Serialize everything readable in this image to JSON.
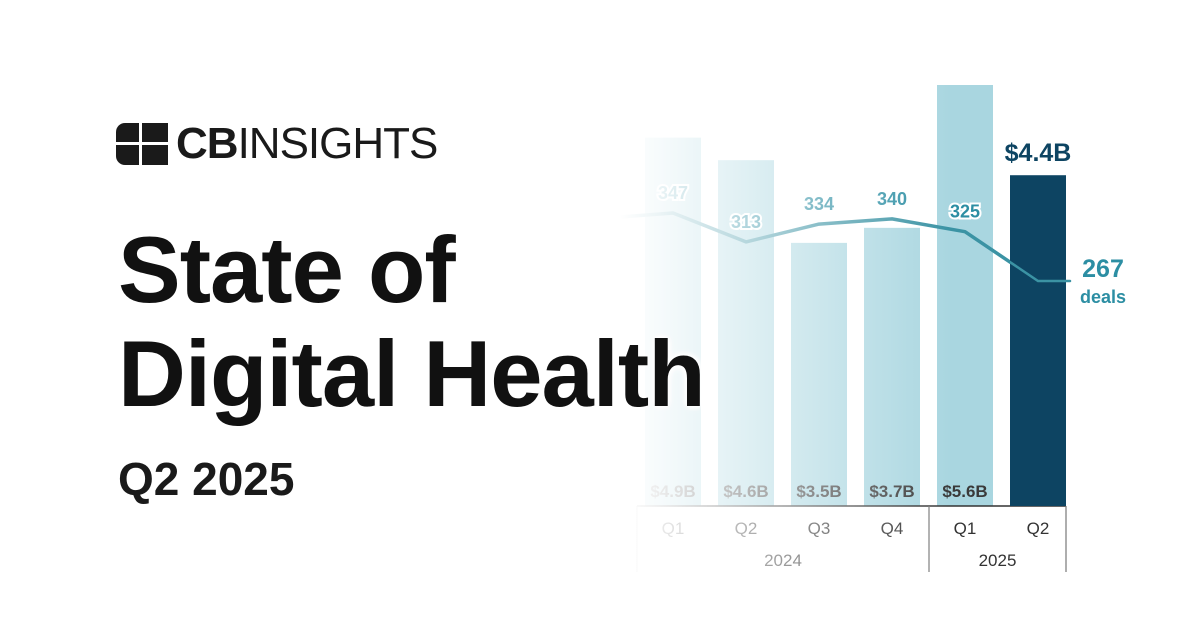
{
  "brand": {
    "logo_icon": "cb-insights-square-mark",
    "name_bold": "CB",
    "name_light": "INSIGHTS"
  },
  "title": {
    "line1": "State of",
    "line2": "Digital Health"
  },
  "subtitle": "Q2 2025",
  "colors": {
    "highlight_bar": "#0d4462",
    "bar_light": "#a9d6e0",
    "line": "#3b93a4",
    "deal_label": "#2c8ea3",
    "title_text": "#111111"
  },
  "chart_data": {
    "type": "bar",
    "categories": [
      "Q1",
      "Q2",
      "Q3",
      "Q4",
      "Q1",
      "Q2"
    ],
    "groups": [
      {
        "label": "2024",
        "categories": [
          "Q1",
          "Q2",
          "Q3",
          "Q4"
        ]
      },
      {
        "label": "2025",
        "categories": [
          "Q1",
          "Q2"
        ]
      }
    ],
    "series": [
      {
        "values": [
          4.9,
          4.6,
          3.5,
          3.7,
          5.6,
          4.4
        ],
        "value_labels": [
          "$4.9B",
          "$4.6B",
          "$3.5B",
          "$3.7B",
          "$5.6B",
          "$4.4B"
        ]
      },
      {
        "type": "line",
        "values": [
          347,
          313,
          334,
          340,
          325,
          267
        ],
        "value_labels": [
          "347",
          "313",
          "334",
          "340",
          "325",
          "267"
        ],
        "end_label": "deals"
      }
    ],
    "highlight_index": 5,
    "title": "",
    "xlabel": "",
    "ylabel": ""
  }
}
